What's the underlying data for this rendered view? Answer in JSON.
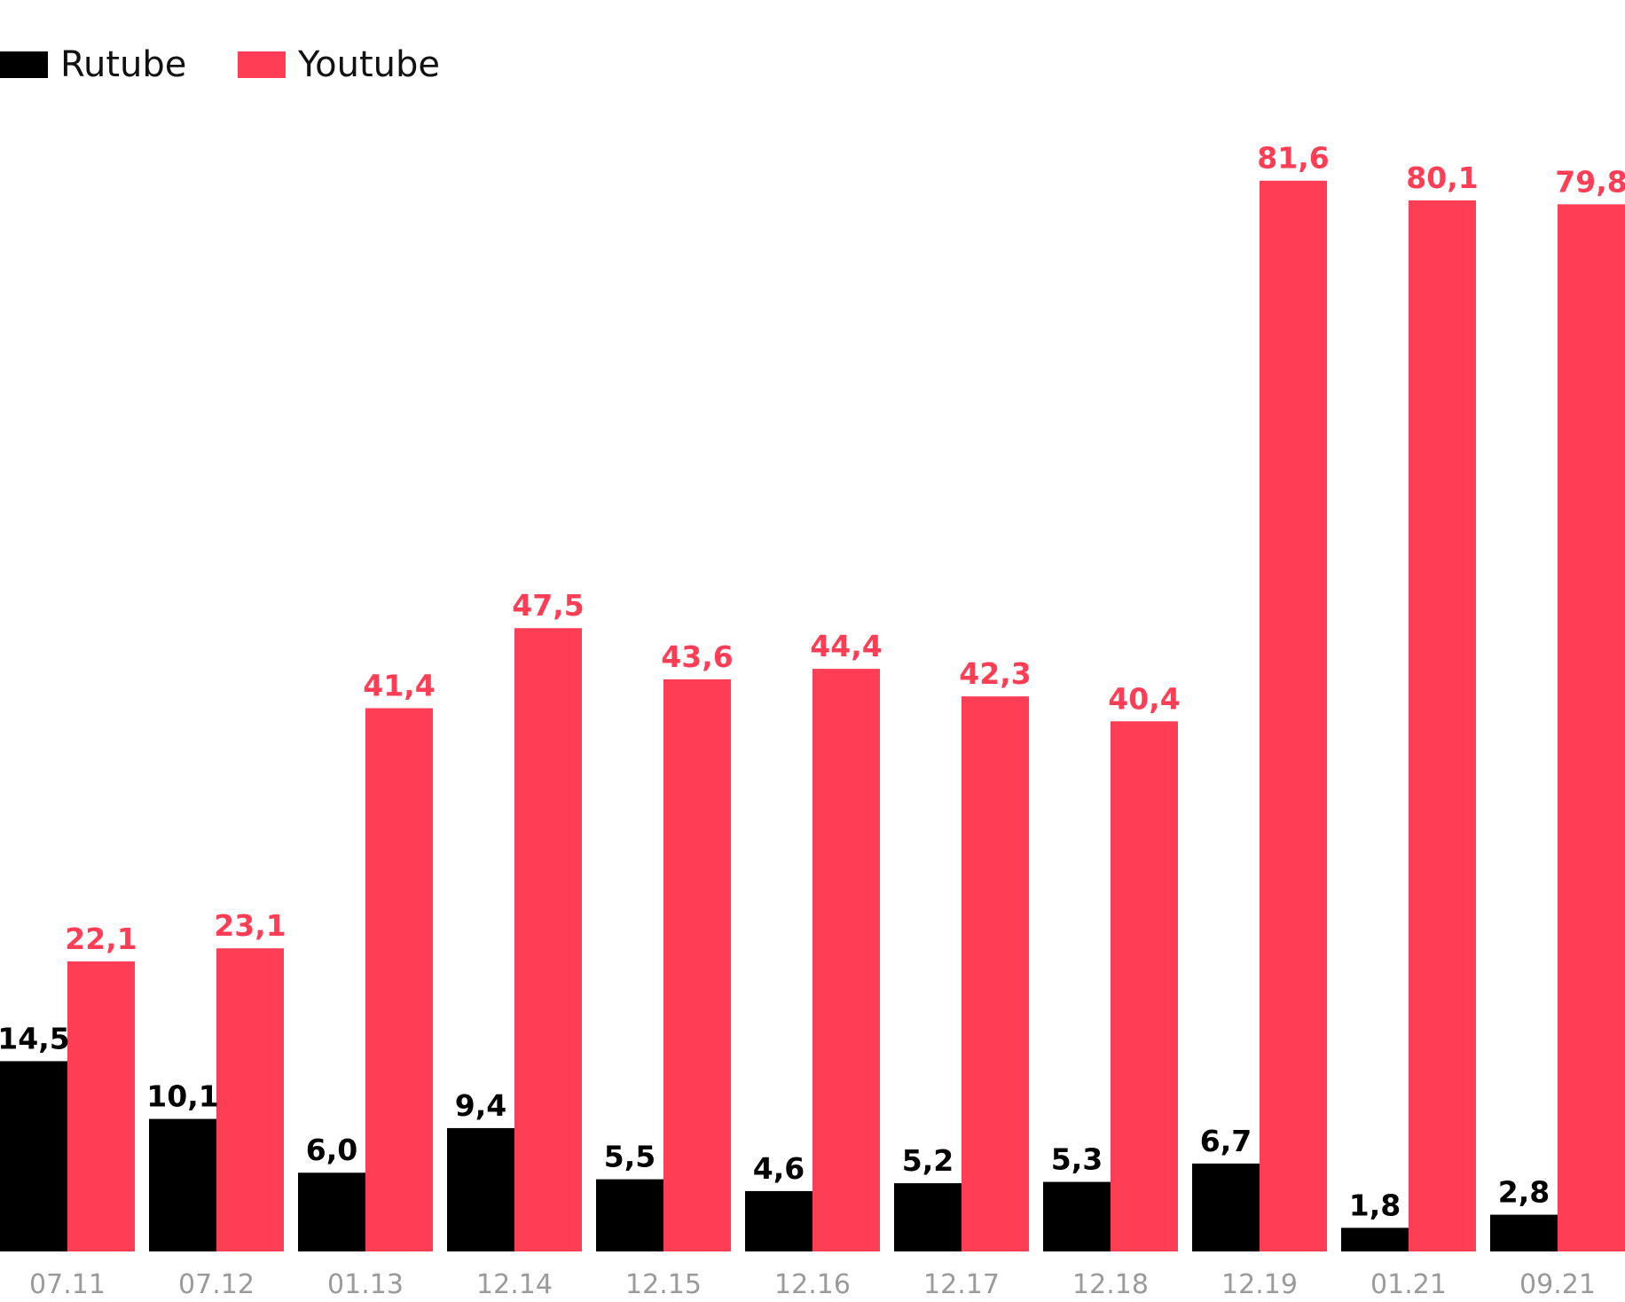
{
  "chart_data": {
    "type": "bar",
    "categories": [
      "07.11",
      "07.12",
      "01.13",
      "12.14",
      "12.15",
      "12.16",
      "12.17",
      "12.18",
      "12.19",
      "01.21",
      "09.21"
    ],
    "series": [
      {
        "name": "Rutube",
        "color": "#000000",
        "values": [
          14.5,
          10.1,
          6.0,
          9.4,
          5.5,
          4.6,
          5.2,
          5.3,
          6.7,
          1.8,
          2.8
        ],
        "labels": [
          "14,5",
          "10,1",
          "6,0",
          "9,4",
          "5,5",
          "4,6",
          "5,2",
          "5,3",
          "6,7",
          "1,8",
          "2,8"
        ]
      },
      {
        "name": "Youtube",
        "color": "#ff3d55",
        "values": [
          22.1,
          23.1,
          41.4,
          47.5,
          43.6,
          44.4,
          42.3,
          40.4,
          81.6,
          80.1,
          79.8
        ],
        "labels": [
          "22,1",
          "23,1",
          "41,4",
          "47,5",
          "43,6",
          "44,4",
          "42,3",
          "40,4",
          "81,6",
          "80,1",
          "79,8"
        ]
      }
    ],
    "legend_position": "top-left",
    "grid": false,
    "axis_color": "#9a9a9a"
  }
}
